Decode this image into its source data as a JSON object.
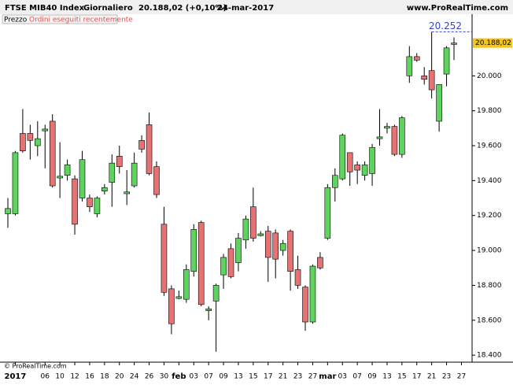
{
  "chart_data": {
    "type": "candlestick",
    "title": "FTSE MIB40 Index",
    "period": "Giornaliero",
    "quote": "20.188,02 (+0,10%)",
    "date": "24-mar-2017",
    "site": "www.ProRealTime.com",
    "legend": [
      "Prezzo",
      "Ordini eseguiti recentemente"
    ],
    "footer": "© ProRealTime.com",
    "up_color": "#5ed35e",
    "down_color": "#e57373",
    "categories": [
      null,
      "2017",
      null,
      null,
      null,
      "06",
      null,
      "10",
      null,
      "12",
      null,
      "16",
      null,
      "18",
      null,
      "20",
      null,
      "24",
      null,
      "26",
      null,
      "30",
      null,
      "feb",
      null,
      "03",
      null,
      "07",
      null,
      "09",
      null,
      "13",
      null,
      "15",
      null,
      "17",
      null,
      "21",
      null,
      "23",
      null,
      "27",
      null,
      "mar",
      null,
      "03",
      null,
      "07",
      null,
      "09",
      null,
      "13",
      null,
      "15",
      null,
      "17",
      null,
      "21",
      null,
      "23",
      null,
      "27"
    ],
    "open": [
      19210,
      19210,
      19670,
      19670,
      19600,
      19685,
      19740,
      19415,
      19430,
      19410,
      19300,
      19300,
      19210,
      19340,
      19390,
      19540,
      19325,
      19370,
      19630,
      19720,
      19480,
      19150,
      18780,
      18725,
      18720,
      18880,
      19160,
      18655,
      18710,
      18860,
      19010,
      18930,
      19060,
      19250,
      19085,
      19110,
      19100,
      19000,
      19110,
      18890,
      18790,
      18590,
      18960,
      19070,
      19360,
      19410,
      19560,
      19490,
      19430,
      19440,
      19640,
      19700,
      19710,
      19550,
      20000,
      20110,
      20000,
      20030,
      19740,
      20010,
      20180,
      null
    ],
    "high": [
      19300,
      19570,
      19810,
      19720,
      19740,
      19720,
      19780,
      19620,
      19520,
      19430,
      19570,
      19320,
      19310,
      19380,
      19550,
      19600,
      19460,
      19560,
      19660,
      19790,
      19510,
      19250,
      18800,
      18770,
      18920,
      19150,
      19170,
      18680,
      18810,
      18980,
      19040,
      19100,
      19200,
      19360,
      19110,
      19140,
      19120,
      19060,
      19120,
      18970,
      18800,
      18920,
      18990,
      19380,
      19470,
      19670,
      19560,
      19510,
      19510,
      19610,
      19810,
      19730,
      19720,
      19770,
      20170,
      20130,
      20050,
      20252,
      19950,
      20170,
      20220,
      null
    ],
    "low": [
      19130,
      19200,
      19560,
      19520,
      19540,
      19470,
      19360,
      19300,
      19400,
      19090,
      19280,
      19220,
      19190,
      19320,
      19250,
      19440,
      19260,
      19360,
      19560,
      19430,
      19300,
      18740,
      18520,
      18720,
      18700,
      18850,
      18680,
      18600,
      18420,
      18780,
      18840,
      18880,
      19010,
      19050,
      19080,
      18820,
      18840,
      18970,
      18770,
      18780,
      18540,
      18580,
      18890,
      19060,
      19280,
      19400,
      19370,
      19380,
      19400,
      19370,
      19600,
      19670,
      19540,
      19530,
      19960,
      20080,
      19950,
      19870,
      19680,
      19940,
      20090,
      null
    ],
    "close": [
      19240,
      19560,
      19570,
      19630,
      19640,
      19695,
      19370,
      19425,
      19490,
      19150,
      19520,
      19250,
      19300,
      19360,
      19500,
      19480,
      19335,
      19500,
      19580,
      19440,
      19320,
      18760,
      18580,
      18735,
      18890,
      19120,
      18690,
      18665,
      18800,
      18960,
      18850,
      19070,
      19180,
      19070,
      19095,
      18960,
      18950,
      19040,
      18880,
      18800,
      18590,
      18910,
      18900,
      19360,
      19430,
      19660,
      19450,
      19460,
      19490,
      19590,
      19650,
      19710,
      19550,
      19760,
      20110,
      20090,
      19980,
      19920,
      19950,
      20160,
      20188.02,
      null
    ],
    "ylim": [
      18360,
      20290
    ],
    "yticks": [
      {
        "value": 18400,
        "label": "18.400"
      },
      {
        "value": 18600,
        "label": "18.600"
      },
      {
        "value": 18800,
        "label": "18.800"
      },
      {
        "value": 19000,
        "label": "19.000"
      },
      {
        "value": 19200,
        "label": "19.200"
      },
      {
        "value": 19400,
        "label": "19.400"
      },
      {
        "value": 19600,
        "label": "19.600"
      },
      {
        "value": 19800,
        "label": "19.800"
      },
      {
        "value": 20000,
        "label": "20.000"
      }
    ],
    "last_price": {
      "value": 20188.02,
      "label": "20.188,02"
    },
    "high_marker": {
      "value": 20252,
      "label": "20.252"
    },
    "grid": false
  }
}
